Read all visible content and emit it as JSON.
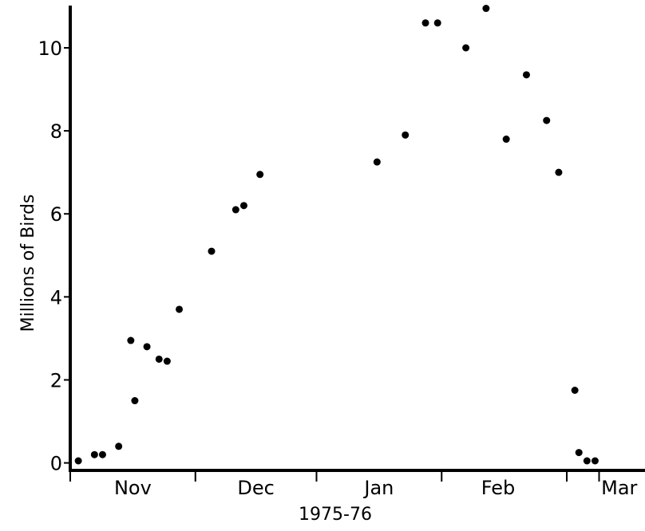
{
  "chart_data": {
    "type": "scatter",
    "title": "",
    "xlabel": "1975-76",
    "ylabel": "Millions of Birds",
    "ylim": [
      0,
      11
    ],
    "yticks": [
      0,
      2,
      4,
      6,
      8,
      10
    ],
    "x_unit": "day index from start of plotted period (Nov begins at 0)",
    "xlim": [
      0,
      140
    ],
    "month_boundaries": [
      0,
      31,
      61,
      92,
      123,
      131
    ],
    "month_labels": [
      {
        "label": "Nov",
        "at": 15.5
      },
      {
        "label": "Dec",
        "at": 46
      },
      {
        "label": "Jan",
        "at": 76.5
      },
      {
        "label": "Feb",
        "at": 106
      },
      {
        "label": "Mar",
        "at": 136
      }
    ],
    "grid": false,
    "legend": "none",
    "marker_color": "#000000",
    "series": [
      {
        "points": [
          {
            "x": 2,
            "y": 0.05
          },
          {
            "x": 6,
            "y": 0.2
          },
          {
            "x": 8,
            "y": 0.2
          },
          {
            "x": 12,
            "y": 0.4
          },
          {
            "x": 15,
            "y": 2.95
          },
          {
            "x": 16,
            "y": 1.5
          },
          {
            "x": 19,
            "y": 2.8
          },
          {
            "x": 22,
            "y": 2.5
          },
          {
            "x": 24,
            "y": 2.45
          },
          {
            "x": 27,
            "y": 3.7
          },
          {
            "x": 35,
            "y": 5.1
          },
          {
            "x": 41,
            "y": 6.1
          },
          {
            "x": 43,
            "y": 6.2
          },
          {
            "x": 47,
            "y": 6.95
          },
          {
            "x": 76,
            "y": 7.25
          },
          {
            "x": 83,
            "y": 7.9
          },
          {
            "x": 88,
            "y": 10.6
          },
          {
            "x": 91,
            "y": 10.6
          },
          {
            "x": 98,
            "y": 10.0
          },
          {
            "x": 103,
            "y": 10.95
          },
          {
            "x": 108,
            "y": 7.8
          },
          {
            "x": 113,
            "y": 9.35
          },
          {
            "x": 118,
            "y": 8.25
          },
          {
            "x": 121,
            "y": 7.0
          },
          {
            "x": 125,
            "y": 1.75
          },
          {
            "x": 126,
            "y": 0.25
          },
          {
            "x": 128,
            "y": 0.05
          },
          {
            "x": 130,
            "y": 0.05
          }
        ]
      }
    ]
  }
}
